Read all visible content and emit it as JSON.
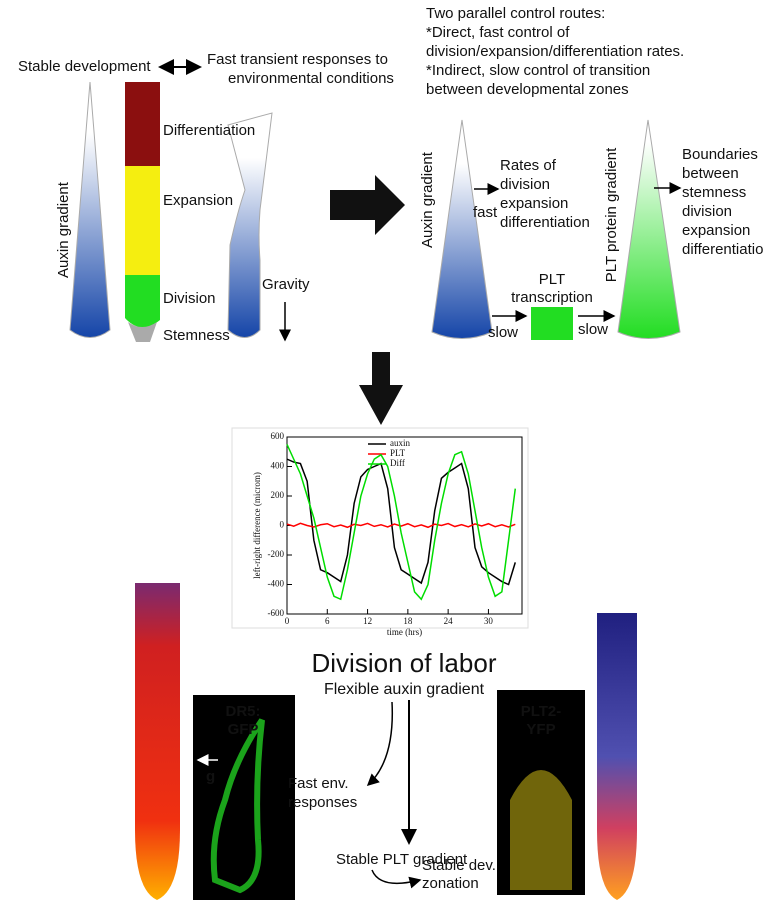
{
  "top_left": {
    "stable": "Stable development",
    "fast": [
      "Fast transient responses to",
      "environmental conditions"
    ],
    "auxin": "Auxin gradient",
    "zones": [
      "Differentiation",
      "Expansion",
      "Division",
      "Stemness"
    ],
    "gravity": "Gravity"
  },
  "top_right": {
    "heading": [
      "Two parallel control routes:",
      "*Direct, fast control of",
      "division/expansion/differentiation rates.",
      "*Indirect, slow control of transition",
      "between developmental zones"
    ],
    "auxin": "Auxin gradient",
    "fast": "fast",
    "rates": [
      "Rates of",
      "division",
      "expansion",
      "differentiation"
    ],
    "plt_transcription": [
      "PLT",
      "transcription"
    ],
    "slow_left": "slow",
    "slow_right": "slow",
    "plt_gradient": "PLT protein gradient",
    "boundaries": [
      "Boundaries",
      "between",
      "stemness",
      "division",
      "expansion",
      "differentiation"
    ]
  },
  "chart": {
    "type": "line",
    "xlabel": "time (hrs)",
    "ylabel": "left-right difference (microm)",
    "x": [
      0,
      1,
      2,
      3,
      4,
      5,
      6,
      7,
      8,
      9,
      10,
      11,
      12,
      13,
      14,
      15,
      16,
      17,
      18,
      19,
      20,
      21,
      22,
      23,
      24,
      25,
      26,
      27,
      28,
      29,
      30,
      31,
      32,
      33,
      34
    ],
    "series": [
      {
        "name": "auxin",
        "color": "#000000",
        "values": [
          450,
          430,
          420,
          300,
          -100,
          -300,
          -320,
          -350,
          -380,
          -200,
          150,
          330,
          380,
          400,
          420,
          250,
          -150,
          -300,
          -330,
          -360,
          -390,
          -250,
          100,
          320,
          360,
          390,
          420,
          250,
          -150,
          -280,
          -320,
          -350,
          -380,
          -400,
          -250
        ]
      },
      {
        "name": "PLT",
        "color": "#ff0000",
        "values": [
          10,
          -5,
          15,
          0,
          -10,
          5,
          12,
          -8,
          3,
          -12,
          8,
          0,
          14,
          -6,
          5,
          -10,
          10,
          -4,
          12,
          -8,
          4,
          -12,
          9,
          0,
          13,
          -7,
          6,
          -9,
          11,
          -3,
          12,
          -8,
          5,
          -10,
          8
        ]
      },
      {
        "name": "Diff",
        "color": "#00dd00",
        "values": [
          550,
          450,
          350,
          200,
          50,
          -150,
          -350,
          -480,
          -500,
          -300,
          -50,
          200,
          350,
          450,
          480,
          400,
          200,
          -50,
          -250,
          -450,
          -500,
          -400,
          -100,
          150,
          350,
          480,
          500,
          350,
          100,
          -150,
          -350,
          -480,
          -450,
          -100,
          250
        ]
      }
    ],
    "xlim": [
      0,
      35
    ],
    "xticks": [
      0,
      6,
      12,
      18,
      24,
      30
    ],
    "ylim": [
      -600,
      600
    ],
    "yticks": [
      -600,
      -400,
      -200,
      0,
      200,
      400,
      600
    ]
  },
  "bottom": {
    "title": "Division of labor",
    "subtitle": "Flexible auxin gradient",
    "dr5": [
      "DR5:",
      "GFP"
    ],
    "g": "g",
    "fast_env": [
      "Fast env.",
      "responses"
    ],
    "stable_plt": "Stable PLT gradient",
    "stable_dev": [
      "Stable dev.",
      "zonation"
    ],
    "plt2": [
      "PLT2-",
      "YFP"
    ]
  }
}
